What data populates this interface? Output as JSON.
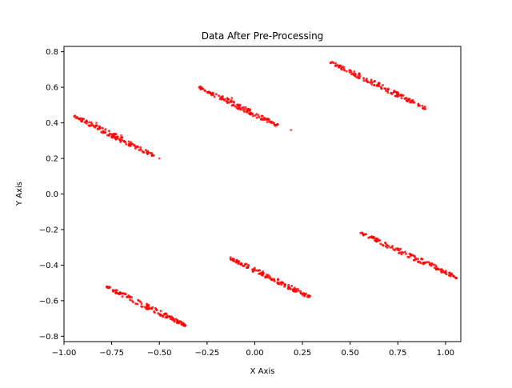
{
  "chart_data": {
    "type": "scatter",
    "title": "Data After Pre-Processing",
    "xlabel": "X Axis",
    "ylabel": "Y Axis",
    "xlim": [
      -1.0,
      1.08
    ],
    "ylim": [
      -0.83,
      0.83
    ],
    "xticks": [
      -1.0,
      -0.75,
      -0.5,
      -0.25,
      0.0,
      0.25,
      0.5,
      0.75,
      1.0
    ],
    "xtick_labels": [
      "−1.00",
      "−0.75",
      "−0.50",
      "−0.25",
      "0.00",
      "0.25",
      "0.50",
      "0.75",
      "1.00"
    ],
    "yticks": [
      -0.8,
      -0.6,
      -0.4,
      -0.2,
      0.0,
      0.2,
      0.4,
      0.6,
      0.8
    ],
    "ytick_labels": [
      "−0.8",
      "−0.6",
      "−0.4",
      "−0.2",
      "0.0",
      "0.2",
      "0.4",
      "0.6",
      "0.8"
    ],
    "grid": false,
    "marker_color": "#ff0000",
    "segments": [
      {
        "x_start": -0.95,
        "y_start": 0.44,
        "x_end": -0.52,
        "y_end": 0.21
      },
      {
        "x_start": -0.29,
        "y_start": 0.6,
        "x_end": 0.13,
        "y_end": 0.38
      },
      {
        "x_start": 0.38,
        "y_start": 0.75,
        "x_end": 0.9,
        "y_end": 0.48
      },
      {
        "x_start": -0.78,
        "y_start": -0.52,
        "x_end": -0.36,
        "y_end": -0.74
      },
      {
        "x_start": -0.13,
        "y_start": -0.36,
        "x_end": 0.29,
        "y_end": -0.58
      },
      {
        "x_start": 0.54,
        "y_start": -0.21,
        "x_end": 1.06,
        "y_end": -0.47
      }
    ],
    "extra_points": [
      {
        "x": 0.19,
        "y": 0.36
      },
      {
        "x": -0.83,
        "y": 0.4
      },
      {
        "x": -0.79,
        "y": 0.35
      },
      {
        "x": -0.7,
        "y": 0.33
      },
      {
        "x": -0.5,
        "y": 0.2
      },
      {
        "x": -0.12,
        "y": 0.54
      },
      {
        "x": -0.02,
        "y": 0.45
      }
    ]
  }
}
